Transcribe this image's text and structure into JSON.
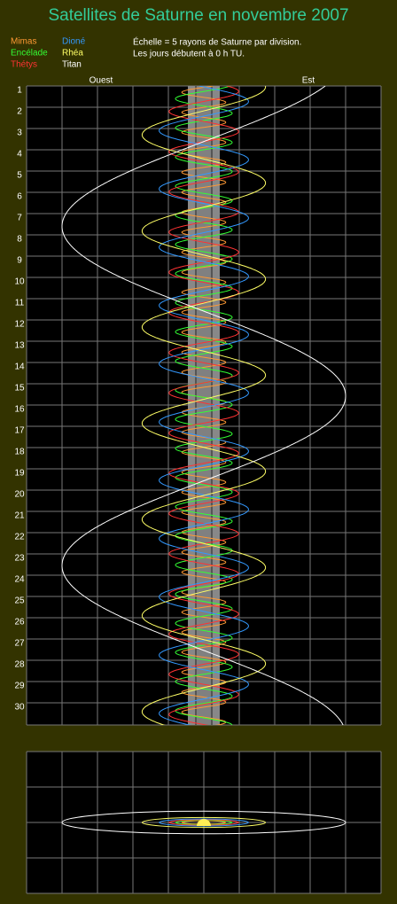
{
  "chart_data": {
    "type": "orbit-trace",
    "title": "Satellites de Saturne en novembre 2007",
    "notes": [
      "Échelle = 5 rayons de Saturne par division.",
      "Les jours débutent à 0 h TU."
    ],
    "west_label": "Ouest",
    "east_label": "Est",
    "days": [
      1,
      2,
      3,
      4,
      5,
      6,
      7,
      8,
      9,
      10,
      11,
      12,
      13,
      14,
      15,
      16,
      17,
      18,
      19,
      20,
      21,
      22,
      23,
      24,
      25,
      26,
      27,
      28,
      29,
      30
    ],
    "series": [
      {
        "name": "Mimas",
        "color": "#ff9933",
        "amplitude": 3.1,
        "period": 0.94,
        "west_elongation_day": 0.3
      },
      {
        "name": "Encélade",
        "color": "#33ff33",
        "amplitude": 4,
        "period": 1.37,
        "west_elongation_day": 0.6
      },
      {
        "name": "Thétys",
        "color": "#ff3333",
        "amplitude": 4.9,
        "period": 1.89,
        "west_elongation_day": 1.2
      },
      {
        "name": "Dioné",
        "color": "#3399ff",
        "amplitude": 6.3,
        "period": 2.74,
        "west_elongation_day": 2.1
      },
      {
        "name": "Rhéa",
        "color": "#ffff66",
        "amplitude": 8.7,
        "period": 4.52,
        "west_elongation_day": 2.3
      },
      {
        "name": "Titan",
        "color": "#ffffff",
        "amplitude": 20,
        "period": 15.95,
        "west_elongation_day": 6.6
      }
    ]
  }
}
